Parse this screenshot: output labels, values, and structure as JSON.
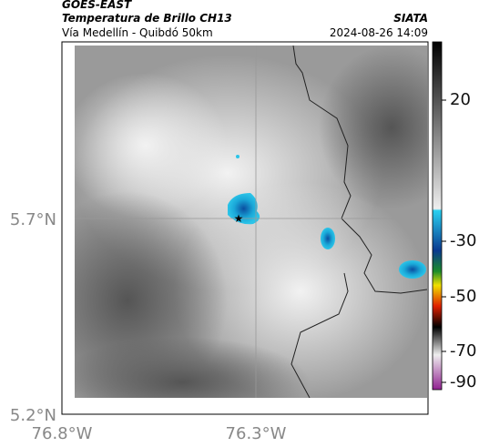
{
  "header": {
    "source": "GOES-EAST",
    "title": "Temperatura de Brillo CH13",
    "subtitle": "Vía Medellín - Quibdó 50km",
    "brand": "SIATA",
    "timestamp": "2024-08-26 14:09"
  },
  "map": {
    "y_labels": [
      "5.7°N",
      "5.2°N"
    ],
    "x_labels": [
      "76.8°W",
      "76.3°W"
    ]
  },
  "colorbar": {
    "ticks": [
      "20",
      "-30",
      "-50",
      "-70",
      "-90"
    ]
  }
}
